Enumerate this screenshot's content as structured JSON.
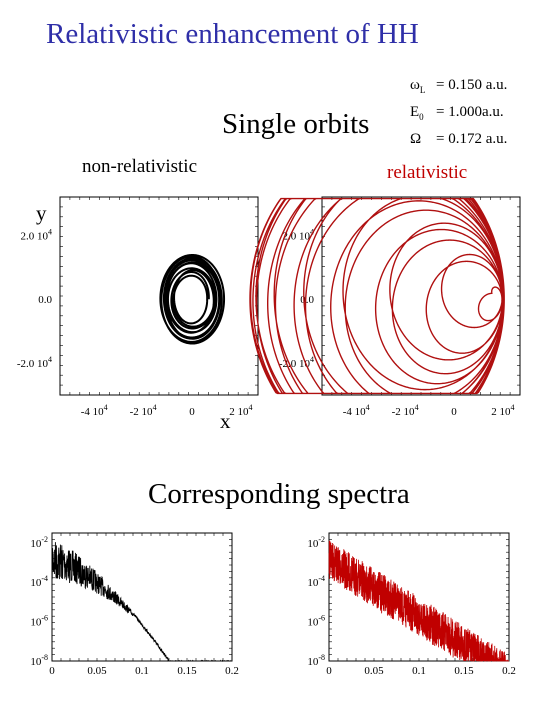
{
  "title": "Relativistic enhancement of HH",
  "subtitle": "Single orbits",
  "spectra_title": "Corresponding spectra",
  "params": [
    {
      "symbol": "ω",
      "sub": "L",
      "text": "= 0.150 a.u."
    },
    {
      "symbol": "E",
      "sub": "0",
      "text": "= 1.000a.u."
    },
    {
      "symbol": "Ω",
      "sub": "",
      "text": "= 0.172 a.u."
    }
  ],
  "nonrel_label": "non-relativistic",
  "rel_label": "relativistic",
  "colors": {
    "title": "#2f2fa8",
    "relativistic": "#c00000",
    "nonrelativistic": "#000000"
  },
  "chart_data": [
    {
      "type": "line",
      "panel": "orbit-nonrelativistic",
      "xlabel": "x",
      "ylabel": "y",
      "xlim": [
        -54000,
        27000
      ],
      "ylim": [
        -30000,
        32000
      ],
      "x_ticks": [
        "-4 10^4",
        "-2 10^4",
        "0",
        "2 10^4"
      ],
      "y_ticks": [
        "2.0 10^4",
        "0.0",
        "-2.0 10^4"
      ],
      "series": [
        {
          "values": {
            "center": [
              0,
              0
            ],
            "rx_max": 14000,
            "ry_max": 14000,
            "loops": 10
          }
        }
      ]
    },
    {
      "type": "line",
      "panel": "orbit-relativistic",
      "xlim": [
        -54000,
        27000
      ],
      "ylim": [
        -30000,
        32000
      ],
      "x_ticks": [
        "-4 10^4",
        "-2 10^4",
        "0",
        "2 10^4"
      ],
      "y_ticks": [
        "2.0 10^4",
        "0.0",
        "-2.0 10^4"
      ],
      "series": [
        {
          "values": {
            "center": [
              20000,
              0
            ],
            "r_max": 52000,
            "loops": 20
          }
        }
      ]
    },
    {
      "type": "line",
      "panel": "spectrum-nonrelativistic",
      "xlim": [
        0,
        0.2
      ],
      "ylim_log10": [
        -8,
        -1.5
      ],
      "x_ticks": [
        "0",
        "0.05",
        "0.1",
        "0.15",
        "0.2"
      ],
      "y_ticks": [
        "10^-2",
        "10^-4",
        "10^-6",
        "10^-8"
      ],
      "series": [
        {
          "values": {
            "start_log10": -1.8,
            "cutoff_x": 0.13,
            "floor_log10": -8
          }
        }
      ]
    },
    {
      "type": "line",
      "panel": "spectrum-relativistic",
      "xlim": [
        0,
        0.2
      ],
      "ylim_log10": [
        -8,
        -1.5
      ],
      "x_ticks": [
        "0",
        "0.05",
        "0.1",
        "0.15",
        "0.2"
      ],
      "y_ticks": [
        "10^-2",
        "10^-4",
        "10^-6",
        "10^-8"
      ],
      "series": [
        {
          "values": {
            "start_log10": -2.2,
            "end_log10": -8,
            "cutoff_x": 0.2
          }
        }
      ]
    }
  ]
}
